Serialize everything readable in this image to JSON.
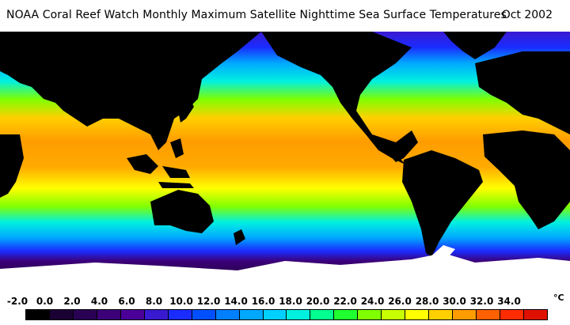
{
  "header": {
    "title": "NOAA Coral Reef Watch Monthly Maximum Satellite Nighttime Sea Surface Temperatures",
    "date": "Oct 2002"
  },
  "legend": {
    "unit": "°C",
    "ticks": [
      "-2.0",
      "0.0",
      "2.0",
      "4.0",
      "6.0",
      "8.0",
      "10.0",
      "12.0",
      "14.0",
      "16.0",
      "18.0",
      "20.0",
      "22.0",
      "24.0",
      "26.0",
      "28.0",
      "30.0",
      "32.0",
      "34.0"
    ],
    "colors": [
      "#000000",
      "#1a0033",
      "#2a0055",
      "#3c0078",
      "#4a0099",
      "#3a1ad0",
      "#1a2cff",
      "#0050ff",
      "#0080ff",
      "#00a8ff",
      "#00d0ff",
      "#00f0e0",
      "#00ff90",
      "#20ff30",
      "#80ff00",
      "#c8ff00",
      "#ffff00",
      "#ffd000",
      "#ff9c00",
      "#ff6000",
      "#ff2c00",
      "#e01000"
    ]
  },
  "map": {
    "land_color": "#000000",
    "ice_color": "#ffffff"
  }
}
